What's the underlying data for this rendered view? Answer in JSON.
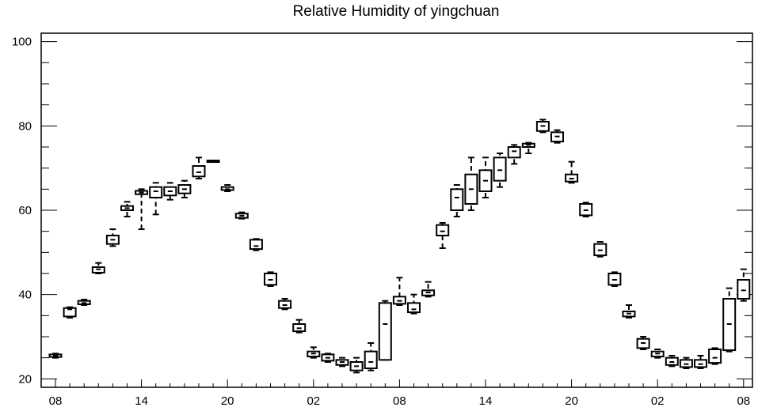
{
  "chart_data": {
    "type": "box",
    "title": "Relative Humidity of yingchuan",
    "xlabel": "",
    "ylabel": "",
    "ylim": [
      18,
      102
    ],
    "yticks": [
      20,
      40,
      60,
      80,
      100
    ],
    "x_tick_labels": [
      "08",
      "14",
      "20",
      "02",
      "08",
      "14",
      "20",
      "02",
      "08"
    ],
    "x_tick_hours": [
      0,
      6,
      12,
      18,
      24,
      30,
      36,
      42,
      48
    ],
    "grid": false,
    "series": [
      {
        "hour": 0,
        "whisker_low": 25.0,
        "q1": 25.2,
        "median": 25.5,
        "q3": 25.8,
        "whisker_high": 26.0
      },
      {
        "hour": 1,
        "whisker_low": 34.5,
        "q1": 34.8,
        "median": 36.5,
        "q3": 36.8,
        "whisker_high": 37.0
      },
      {
        "hour": 2,
        "whisker_low": 37.5,
        "q1": 37.7,
        "median": 38.0,
        "q3": 38.5,
        "whisker_high": 38.8
      },
      {
        "hour": 3,
        "whisker_low": 45.0,
        "q1": 45.2,
        "median": 46.0,
        "q3": 46.5,
        "whisker_high": 47.5
      },
      {
        "hour": 4,
        "whisker_low": 51.5,
        "q1": 52.0,
        "median": 53.0,
        "q3": 54.0,
        "whisker_high": 55.5
      },
      {
        "hour": 5,
        "whisker_low": 58.5,
        "q1": 60.0,
        "median": 60.5,
        "q3": 61.0,
        "whisker_high": 62.0
      },
      {
        "hour": 6,
        "whisker_low": 55.5,
        "q1": 63.8,
        "median": 64.2,
        "q3": 64.6,
        "whisker_high": 65.0
      },
      {
        "hour": 7,
        "whisker_low": 59.0,
        "q1": 63.0,
        "median": 64.5,
        "q3": 65.5,
        "whisker_high": 66.5
      },
      {
        "hour": 8,
        "whisker_low": 62.5,
        "q1": 63.5,
        "median": 64.5,
        "q3": 65.5,
        "whisker_high": 66.5
      },
      {
        "hour": 9,
        "whisker_low": 63.0,
        "q1": 64.0,
        "median": 65.0,
        "q3": 66.0,
        "whisker_high": 67.0
      },
      {
        "hour": 10,
        "whisker_low": 67.5,
        "q1": 68.0,
        "median": 69.0,
        "q3": 70.5,
        "whisker_high": 72.5
      },
      {
        "hour": 11,
        "whisker_low": 71.5,
        "q1": 71.5,
        "median": 71.8,
        "q3": 71.8,
        "whisker_high": 71.8
      },
      {
        "hour": 12,
        "whisker_low": 64.5,
        "q1": 64.8,
        "median": 65.0,
        "q3": 65.5,
        "whisker_high": 66.0
      },
      {
        "hour": 13,
        "whisker_low": 58.0,
        "q1": 58.2,
        "median": 58.7,
        "q3": 59.2,
        "whisker_high": 59.5
      },
      {
        "hour": 14,
        "whisker_low": 50.5,
        "q1": 50.8,
        "median": 51.5,
        "q3": 53.0,
        "whisker_high": 53.2
      },
      {
        "hour": 15,
        "whisker_low": 42.0,
        "q1": 42.3,
        "median": 43.5,
        "q3": 45.0,
        "whisker_high": 45.3
      },
      {
        "hour": 16,
        "whisker_low": 36.5,
        "q1": 36.8,
        "median": 37.5,
        "q3": 38.5,
        "whisker_high": 39.0
      },
      {
        "hour": 17,
        "whisker_low": 31.0,
        "q1": 31.3,
        "median": 32.0,
        "q3": 33.0,
        "whisker_high": 34.0
      },
      {
        "hour": 18,
        "whisker_low": 25.0,
        "q1": 25.3,
        "median": 26.0,
        "q3": 26.5,
        "whisker_high": 27.5
      },
      {
        "hour": 19,
        "whisker_low": 24.0,
        "q1": 24.3,
        "median": 25.0,
        "q3": 25.8,
        "whisker_high": 26.0
      },
      {
        "hour": 20,
        "whisker_low": 23.0,
        "q1": 23.3,
        "median": 24.0,
        "q3": 24.5,
        "whisker_high": 25.0
      },
      {
        "hour": 21,
        "whisker_low": 21.5,
        "q1": 22.0,
        "median": 23.0,
        "q3": 24.0,
        "whisker_high": 25.0
      },
      {
        "hour": 22,
        "whisker_low": 22.0,
        "q1": 22.5,
        "median": 24.0,
        "q3": 26.5,
        "whisker_high": 28.5
      },
      {
        "hour": 23,
        "whisker_low": 24.5,
        "q1": 24.5,
        "median": 33.0,
        "q3": 38.0,
        "whisker_high": 38.5
      },
      {
        "hour": 24,
        "whisker_low": 37.5,
        "q1": 37.8,
        "median": 38.5,
        "q3": 39.5,
        "whisker_high": 44.0
      },
      {
        "hour": 25,
        "whisker_low": 35.5,
        "q1": 35.8,
        "median": 36.5,
        "q3": 38.0,
        "whisker_high": 40.0
      },
      {
        "hour": 26,
        "whisker_low": 39.5,
        "q1": 39.8,
        "median": 40.5,
        "q3": 41.0,
        "whisker_high": 43.0
      },
      {
        "hour": 27,
        "whisker_low": 51.0,
        "q1": 54.0,
        "median": 55.0,
        "q3": 56.5,
        "whisker_high": 57.0
      },
      {
        "hour": 28,
        "whisker_low": 58.5,
        "q1": 60.0,
        "median": 63.0,
        "q3": 65.0,
        "whisker_high": 66.0
      },
      {
        "hour": 29,
        "whisker_low": 60.0,
        "q1": 61.5,
        "median": 65.0,
        "q3": 68.5,
        "whisker_high": 72.5
      },
      {
        "hour": 30,
        "whisker_low": 63.0,
        "q1": 64.5,
        "median": 67.0,
        "q3": 69.5,
        "whisker_high": 72.5
      },
      {
        "hour": 31,
        "whisker_low": 65.5,
        "q1": 67.0,
        "median": 69.5,
        "q3": 72.5,
        "whisker_high": 73.5
      },
      {
        "hour": 32,
        "whisker_low": 71.0,
        "q1": 72.5,
        "median": 74.0,
        "q3": 75.0,
        "whisker_high": 75.5
      },
      {
        "hour": 33,
        "whisker_low": 73.5,
        "q1": 75.0,
        "median": 75.5,
        "q3": 75.8,
        "whisker_high": 76.0
      },
      {
        "hour": 34,
        "whisker_low": 78.5,
        "q1": 78.8,
        "median": 80.0,
        "q3": 81.0,
        "whisker_high": 81.5
      },
      {
        "hour": 35,
        "whisker_low": 76.0,
        "q1": 76.3,
        "median": 77.5,
        "q3": 78.5,
        "whisker_high": 79.0
      },
      {
        "hour": 36,
        "whisker_low": 66.5,
        "q1": 66.8,
        "median": 67.5,
        "q3": 68.5,
        "whisker_high": 71.5
      },
      {
        "hour": 37,
        "whisker_low": 58.5,
        "q1": 58.8,
        "median": 60.0,
        "q3": 61.5,
        "whisker_high": 61.8
      },
      {
        "hour": 38,
        "whisker_low": 49.0,
        "q1": 49.3,
        "median": 50.5,
        "q3": 52.0,
        "whisker_high": 52.5
      },
      {
        "hour": 39,
        "whisker_low": 42.0,
        "q1": 42.3,
        "median": 43.5,
        "q3": 45.0,
        "whisker_high": 45.3
      },
      {
        "hour": 40,
        "whisker_low": 34.5,
        "q1": 34.8,
        "median": 35.5,
        "q3": 36.0,
        "whisker_high": 37.5
      },
      {
        "hour": 41,
        "whisker_low": 27.0,
        "q1": 27.3,
        "median": 28.5,
        "q3": 29.5,
        "whisker_high": 30.0
      },
      {
        "hour": 42,
        "whisker_low": 25.0,
        "q1": 25.3,
        "median": 26.0,
        "q3": 26.5,
        "whisker_high": 27.0
      },
      {
        "hour": 43,
        "whisker_low": 23.0,
        "q1": 23.3,
        "median": 24.0,
        "q3": 25.0,
        "whisker_high": 25.5
      },
      {
        "hour": 44,
        "whisker_low": 22.5,
        "q1": 22.8,
        "median": 23.5,
        "q3": 24.5,
        "whisker_high": 25.0
      },
      {
        "hour": 45,
        "whisker_low": 22.5,
        "q1": 22.8,
        "median": 23.5,
        "q3": 24.5,
        "whisker_high": 25.5
      },
      {
        "hour": 46,
        "whisker_low": 23.5,
        "q1": 23.8,
        "median": 25.0,
        "q3": 27.0,
        "whisker_high": 27.3
      },
      {
        "hour": 47,
        "whisker_low": 26.5,
        "q1": 26.8,
        "median": 33.0,
        "q3": 39.0,
        "whisker_high": 41.5
      },
      {
        "hour": 48,
        "whisker_low": 38.5,
        "q1": 39.0,
        "median": 41.0,
        "q3": 43.5,
        "whisker_high": 46.0
      }
    ]
  }
}
